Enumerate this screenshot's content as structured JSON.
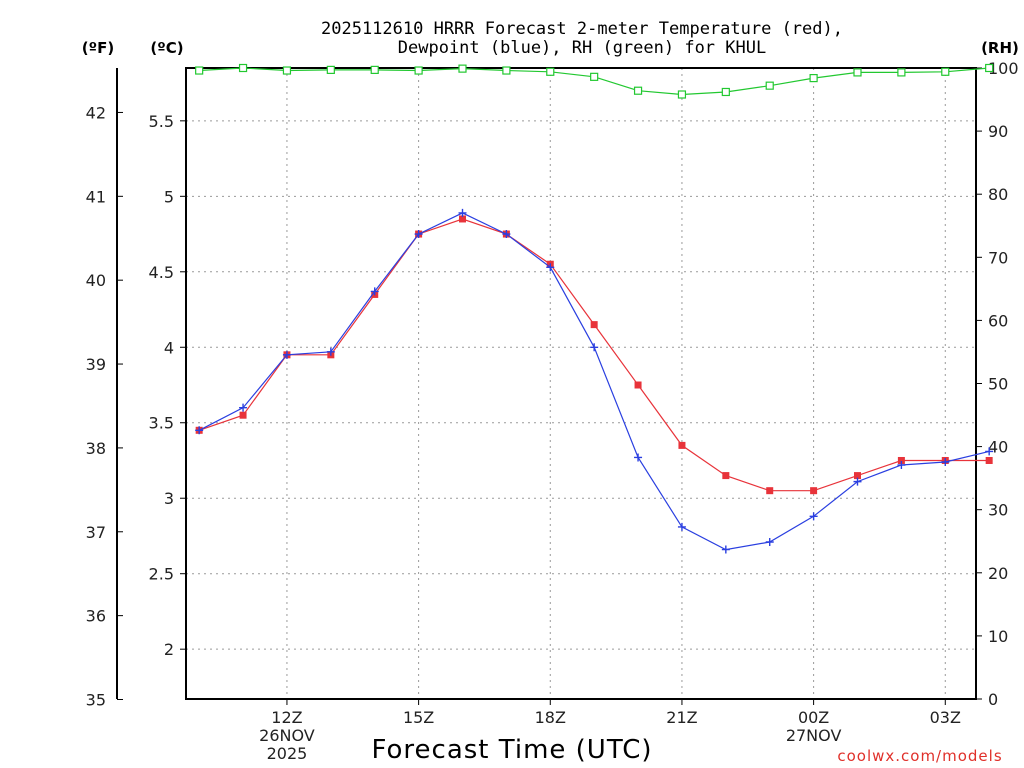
{
  "chart_data": {
    "type": "line",
    "title_line1": "2025112610 HRRR Forecast 2-meter Temperature (red),",
    "title_line2": "Dewpoint (blue), RH (green) for KHUL",
    "units": {
      "fahrenheit": "(ºF)",
      "celsius": "(ºC)",
      "rh": "(RH)"
    },
    "xlabel": "Forecast Time (UTC)",
    "credit": "coolwx.com/models",
    "x_hours": [
      10,
      11,
      12,
      13,
      14,
      15,
      16,
      17,
      18,
      19,
      20,
      21,
      22,
      23,
      24,
      25,
      26,
      27,
      28
    ],
    "x_ticks": [
      {
        "hour": 12,
        "label": "12Z",
        "date": "26NOV",
        "year": "2025"
      },
      {
        "hour": 15,
        "label": "15Z"
      },
      {
        "hour": 18,
        "label": "18Z"
      },
      {
        "hour": 21,
        "label": "21Z"
      },
      {
        "hour": 24,
        "label": "00Z",
        "date": "27NOV"
      },
      {
        "hour": 27,
        "label": "03Z"
      }
    ],
    "xlim": [
      9.7,
      27.7
    ],
    "left_axis_celsius": {
      "ylim": [
        1.67,
        5.85
      ],
      "ticks": [
        "2",
        "2.5",
        "3",
        "3.5",
        "4",
        "4.5",
        "5",
        "5.5"
      ]
    },
    "far_left_axis_fahrenheit": {
      "ticks": [
        "35",
        "36",
        "37",
        "38",
        "39",
        "40",
        "41",
        "42"
      ]
    },
    "right_axis_rh": {
      "ylim": [
        0,
        100
      ],
      "ticks": [
        "0",
        "10",
        "20",
        "30",
        "40",
        "50",
        "60",
        "70",
        "80",
        "90",
        "100"
      ]
    },
    "series": [
      {
        "name": "Temperature",
        "axis": "celsius",
        "color": "#e8333a",
        "marker": "square",
        "values": [
          3.45,
          3.55,
          3.95,
          3.95,
          4.35,
          4.75,
          4.85,
          4.75,
          4.55,
          4.15,
          3.75,
          3.35,
          3.15,
          3.05,
          3.05,
          3.15,
          3.25,
          3.25,
          3.25
        ]
      },
      {
        "name": "Dewpoint",
        "axis": "celsius",
        "color": "#2a3fe0",
        "marker": "plus",
        "values": [
          3.45,
          3.6,
          3.95,
          3.97,
          4.37,
          4.75,
          4.89,
          4.75,
          4.53,
          4.0,
          3.27,
          2.81,
          2.66,
          2.71,
          2.88,
          3.11,
          3.22,
          3.24,
          3.31
        ]
      },
      {
        "name": "RH",
        "axis": "rh",
        "color": "#22c830",
        "marker": "open-square",
        "values": [
          99.6,
          100,
          99.6,
          99.7,
          99.7,
          99.6,
          99.9,
          99.6,
          99.4,
          98.6,
          96.4,
          95.8,
          96.2,
          97.2,
          98.4,
          99.3,
          99.3,
          99.4,
          100
        ]
      }
    ],
    "grid": true
  }
}
